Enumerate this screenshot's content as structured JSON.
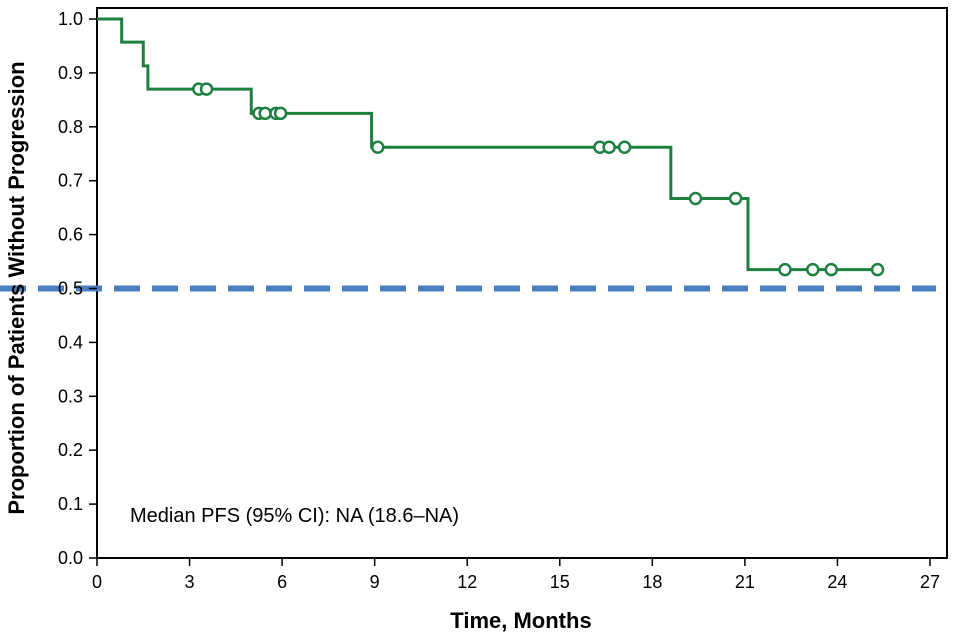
{
  "chart_data": {
    "type": "line",
    "subtype": "kaplan-meier",
    "title": "",
    "xlabel": "Time, Months",
    "ylabel": "Proportion of Patients Without Progression",
    "xlim": [
      0,
      27
    ],
    "ylim": [
      0,
      1.0
    ],
    "x_ticks": [
      0,
      3,
      6,
      9,
      12,
      15,
      18,
      21,
      24,
      27
    ],
    "x_tick_labels": [
      "0",
      "3",
      "6",
      "9",
      "12",
      "15",
      "18",
      "21",
      "24",
      "27"
    ],
    "y_ticks": [
      0,
      0.1,
      0.2,
      0.3,
      0.4,
      0.5,
      0.6,
      0.7,
      0.8,
      0.9,
      1.0
    ],
    "y_tick_labels": [
      "0.0",
      "0.1",
      "0.2",
      "0.3",
      "0.4",
      "0.5",
      "0.6",
      "0.7",
      "0.8",
      "0.9",
      "1.0"
    ],
    "grid": false,
    "legend": "none",
    "series": [
      {
        "color": "#1e8040",
        "steps": [
          {
            "x": 0,
            "y": 1.0
          },
          {
            "x": 0.8,
            "y": 0.957
          },
          {
            "x": 1.5,
            "y": 0.913
          },
          {
            "x": 1.65,
            "y": 0.87
          },
          {
            "x": 5.0,
            "y": 0.825
          },
          {
            "x": 8.9,
            "y": 0.762
          },
          {
            "x": 18.6,
            "y": 0.667
          },
          {
            "x": 21.1,
            "y": 0.535
          },
          {
            "x": 25.3,
            "y": 0.535
          }
        ],
        "censored": [
          {
            "x": 3.3,
            "y": 0.87
          },
          {
            "x": 3.55,
            "y": 0.87
          },
          {
            "x": 5.25,
            "y": 0.825
          },
          {
            "x": 5.45,
            "y": 0.825
          },
          {
            "x": 5.8,
            "y": 0.825
          },
          {
            "x": 5.95,
            "y": 0.825
          },
          {
            "x": 9.1,
            "y": 0.762
          },
          {
            "x": 16.3,
            "y": 0.762
          },
          {
            "x": 16.6,
            "y": 0.762
          },
          {
            "x": 17.1,
            "y": 0.762
          },
          {
            "x": 19.4,
            "y": 0.667
          },
          {
            "x": 20.7,
            "y": 0.667
          },
          {
            "x": 22.3,
            "y": 0.535
          },
          {
            "x": 23.2,
            "y": 0.535
          },
          {
            "x": 23.8,
            "y": 0.535
          },
          {
            "x": 25.3,
            "y": 0.535
          }
        ]
      }
    ],
    "reference_line": {
      "y": 0.5,
      "color": "#4a7fc1",
      "style": "dashed"
    },
    "annotation": "Median PFS (95% CI): NA (18.6–NA)"
  }
}
